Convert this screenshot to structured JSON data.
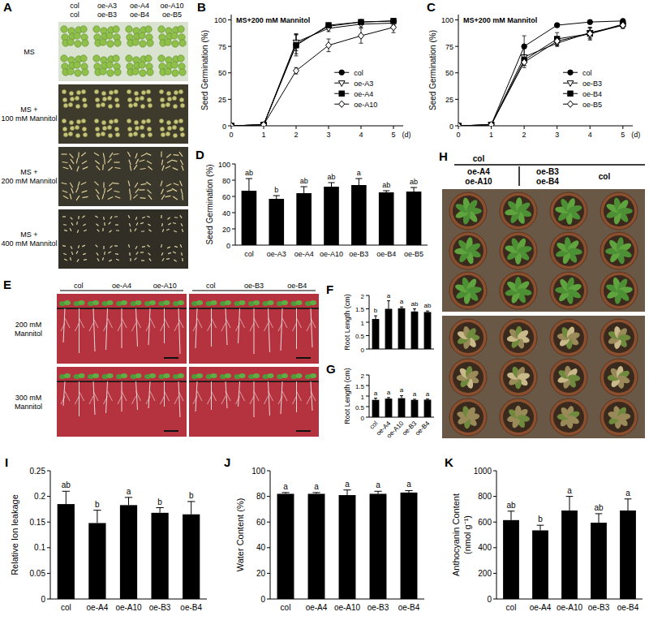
{
  "photo_panels": {
    "A": {
      "letter": "A",
      "headers": [
        [
          "col",
          "oe-A3",
          "oe-A4",
          "oe-A10"
        ],
        [
          "col",
          "oe-B3",
          "oe-B4",
          "oe-B5"
        ]
      ],
      "row_labels": [
        [
          "MS"
        ],
        [
          "MS +",
          "100 mM Mannitol"
        ],
        [
          "MS +",
          "200 mM Mannitol"
        ],
        [
          "MS +",
          "400 mM Mannitol"
        ]
      ]
    },
    "E": {
      "letter": "E",
      "groups": [
        [
          "col",
          "oe-A4",
          "oe-A10"
        ],
        [
          "col",
          "oe-B3",
          "oe-B4"
        ]
      ],
      "row_labels": [
        [
          "200 mM",
          "Mannitol"
        ],
        [
          "300 mM",
          "Mannitol"
        ]
      ]
    },
    "H": {
      "letter": "H",
      "groups": [
        {
          "top": "col",
          "bottom": [
            "oe-A4",
            "oe-A10"
          ]
        },
        {
          "top": "col",
          "bottom": [
            "oe-B3",
            "oe-B4"
          ]
        }
      ]
    }
  },
  "chart_data": [
    {
      "type": "line",
      "panel": "B",
      "title": "MS+200 mM Mannitol",
      "xlabel": "(d)",
      "ylabel": "Seed Germination (%)",
      "x": [
        0,
        1,
        2,
        3,
        4,
        5
      ],
      "xlim": [
        0,
        5.3
      ],
      "xticks": [
        0,
        1,
        2,
        3,
        4,
        5
      ],
      "ylim": [
        0,
        105
      ],
      "yticks": [
        0,
        25,
        50,
        75,
        100
      ],
      "grid": false,
      "legend": "lower right",
      "series": [
        {
          "name": "col",
          "color": "#000000",
          "marker": "filled-circle",
          "values": [
            0,
            1,
            77,
            94,
            98,
            99
          ],
          "errors": [
            0,
            0.5,
            9,
            2,
            2,
            1
          ]
        },
        {
          "name": "oe-A3",
          "color": "#000000",
          "marker": "open-triangle-down",
          "values": [
            0,
            1,
            79,
            92,
            96,
            97
          ],
          "errors": [
            0,
            0.5,
            8,
            3,
            3,
            2
          ]
        },
        {
          "name": "oe-A4",
          "color": "#000000",
          "marker": "filled-square",
          "values": [
            0,
            1,
            76,
            95,
            98,
            99
          ],
          "errors": [
            0,
            0.5,
            10,
            2,
            1,
            1
          ]
        },
        {
          "name": "oe-A10",
          "color": "#000000",
          "marker": "open-diamond",
          "values": [
            0,
            1,
            52,
            76,
            85,
            93
          ],
          "errors": [
            0,
            0.5,
            3,
            6,
            7,
            5
          ]
        }
      ]
    },
    {
      "type": "line",
      "panel": "C",
      "title": "MS+200 mM Mannitol",
      "xlabel": "(d)",
      "ylabel": "Seed Germination (%)",
      "x": [
        0,
        1,
        2,
        3,
        4,
        5
      ],
      "xlim": [
        0,
        5.3
      ],
      "xticks": [
        0,
        1,
        2,
        3,
        4,
        5
      ],
      "ylim": [
        0,
        105
      ],
      "yticks": [
        0,
        25,
        50,
        75,
        100
      ],
      "grid": false,
      "legend": "lower right",
      "series": [
        {
          "name": "col",
          "color": "#000000",
          "marker": "filled-circle",
          "values": [
            0,
            1,
            75,
            95,
            98,
            99
          ],
          "errors": [
            0,
            0.5,
            10,
            2,
            2,
            1
          ]
        },
        {
          "name": "oe-B3",
          "color": "#000000",
          "marker": "open-triangle-down",
          "values": [
            0,
            1,
            65,
            78,
            88,
            95
          ],
          "errors": [
            0,
            0.5,
            8,
            3,
            5,
            3
          ]
        },
        {
          "name": "oe-B4",
          "color": "#000000",
          "marker": "filled-square",
          "values": [
            0,
            1,
            62,
            82,
            87,
            96
          ],
          "errors": [
            0,
            0.5,
            5,
            6,
            5,
            3
          ]
        },
        {
          "name": "oe-B5",
          "color": "#000000",
          "marker": "open-diamond",
          "values": [
            0,
            1,
            60,
            80,
            87,
            95
          ],
          "errors": [
            0,
            0.5,
            5,
            4,
            6,
            3
          ]
        }
      ]
    },
    {
      "type": "bar",
      "panel": "D",
      "ylabel": "Seed Germination (%)",
      "categories": [
        "col",
        "oe-A3",
        "oe-A4",
        "oe-A10",
        "oe-B3",
        "oe-B4",
        "oe-B5"
      ],
      "values": [
        67,
        57,
        64,
        72,
        74,
        65,
        66
      ],
      "errors": [
        15,
        4,
        8,
        5,
        8,
        2,
        5
      ],
      "annotations": [
        "ab",
        "b",
        "ab",
        "ab",
        "a",
        "ab",
        "ab"
      ],
      "color": "#000000",
      "ylim": [
        0,
        100
      ],
      "yticks": [
        0,
        20,
        40,
        60,
        80,
        100
      ],
      "grid": false
    },
    {
      "type": "bar",
      "panel": "F",
      "ylabel": "Root Length (cm)",
      "values": [
        1.12,
        1.5,
        1.52,
        1.4,
        1.38
      ],
      "errors": [
        0.12,
        0.3,
        0.05,
        0.1,
        0.04
      ],
      "annotations": [
        "b",
        "a",
        "a",
        "ab",
        "ab"
      ],
      "color": "#000000",
      "ylim": [
        0,
        2
      ],
      "yticks": [
        0,
        0.5,
        1,
        1.5,
        2
      ],
      "grid": false,
      "tick_labels": "y"
    },
    {
      "type": "bar",
      "panel": "G",
      "ylabel": "Root Length (cm)",
      "categories": [
        "col",
        "oe-A4",
        "oe-A10",
        "oe-B3",
        "oe-B4"
      ],
      "values": [
        0.82,
        0.88,
        0.9,
        0.82,
        0.83
      ],
      "errors": [
        0.08,
        0.05,
        0.12,
        0.03,
        0.03
      ],
      "annotations": [
        "a",
        "a",
        "a",
        "a",
        "a"
      ],
      "color": "#000000",
      "ylim": [
        0,
        2
      ],
      "yticks": [
        0,
        0.5,
        1,
        1.5,
        2
      ],
      "grid": false
    },
    {
      "type": "bar",
      "panel": "I",
      "ylabel": "Relative Ion leakage",
      "categories": [
        "col",
        "oe-A4",
        "oe-A10",
        "oe-B3",
        "oe-B4"
      ],
      "values": [
        0.185,
        0.148,
        0.183,
        0.168,
        0.165
      ],
      "errors": [
        0.025,
        0.025,
        0.015,
        0.01,
        0.025
      ],
      "annotations": [
        "ab",
        "b",
        "a",
        "b",
        "b"
      ],
      "color": "#000000",
      "ylim": [
        0,
        0.25
      ],
      "yticks": [
        0,
        0.05,
        0.1,
        0.15,
        0.2,
        0.25
      ],
      "grid": false
    },
    {
      "type": "bar",
      "panel": "J",
      "ylabel": "Water Content (%)",
      "categories": [
        "col",
        "oe-A4",
        "oe-A10",
        "oe-B3",
        "oe-B4"
      ],
      "values": [
        82,
        82,
        81,
        82,
        83
      ],
      "errors": [
        1,
        1,
        4,
        2,
        1.5
      ],
      "annotations": [
        "a",
        "a",
        "a",
        "a",
        "a"
      ],
      "color": "#000000",
      "ylim": [
        0,
        100
      ],
      "yticks": [
        0,
        20,
        40,
        60,
        80,
        100
      ],
      "grid": false
    },
    {
      "type": "bar",
      "panel": "K",
      "ylabel": [
        "Anthocyanin Content",
        "(nmol g⁻¹)"
      ],
      "categories": [
        "col",
        "oe-A4",
        "oe-A10",
        "oe-B3",
        "oe-B4"
      ],
      "values": [
        615,
        535,
        690,
        595,
        690
      ],
      "errors": [
        70,
        40,
        110,
        70,
        90
      ],
      "annotations": [
        "ab",
        "b",
        "a",
        "ab",
        "a"
      ],
      "color": "#000000",
      "ylim": [
        0,
        1000
      ],
      "yticks": [
        0,
        200,
        400,
        600,
        800,
        1000
      ],
      "grid": false
    }
  ]
}
